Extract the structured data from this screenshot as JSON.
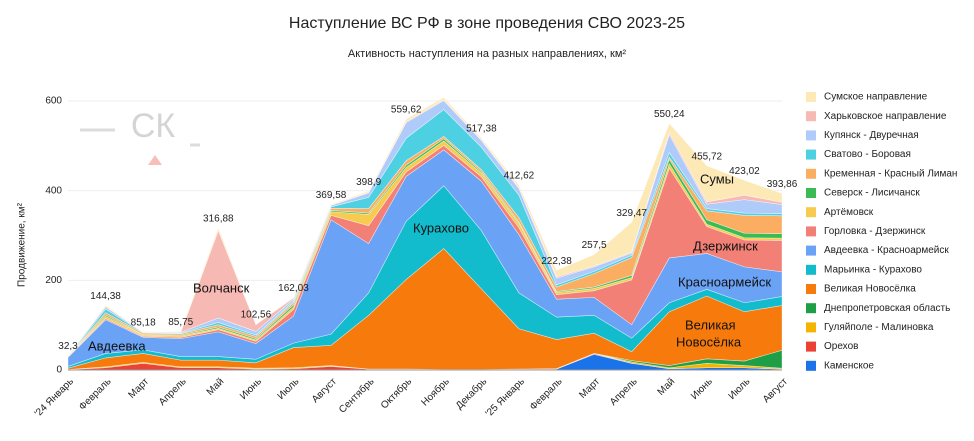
{
  "chart_data": {
    "type": "stacked_area",
    "title": "Наступление ВС РФ в зоне проведения СВО 2023-25",
    "subtitle": "Активность наступления на разных направлениях, км²",
    "y_label": "Продвижение, км²",
    "watermark": "СК",
    "categories": [
      "'24 Январь",
      "Февраль",
      "Март",
      "Апрель",
      "Май",
      "Июнь",
      "Июль",
      "Август",
      "Сентябрь",
      "Октябрь",
      "Ноябрь",
      "Декабрь",
      "'25 Январь",
      "Февраль",
      "Март",
      "Апрель",
      "Май",
      "Июнь",
      "Июль",
      "Август"
    ],
    "ylim": [
      0,
      600
    ],
    "yticks": [
      0,
      200,
      400,
      600
    ],
    "grid": true,
    "series": [
      {
        "name": "Сумское направление",
        "color": "#fde9b6",
        "values": [
          0,
          3.38,
          1.18,
          1.75,
          5.88,
          1.56,
          1.03,
          1.58,
          2.9,
          5.62,
          5,
          3.38,
          5.62,
          14.38,
          25.5,
          66.47,
          20.24,
          80.72,
          33.02,
          19.86
        ]
      },
      {
        "name": "Харьковское направление",
        "color": "#f7b9b3",
        "values": [
          0,
          0,
          0,
          0,
          195,
          15,
          3,
          1,
          1,
          2,
          2,
          2,
          2,
          3,
          2,
          2,
          5,
          5,
          10,
          5
        ]
      },
      {
        "name": "Купянск - Двуречная",
        "color": "#aecbfa",
        "values": [
          1,
          5,
          1,
          2,
          10,
          8,
          5,
          3,
          10,
          35,
          20,
          15,
          15,
          15,
          10,
          5,
          40,
          10,
          30,
          20
        ]
      },
      {
        "name": "Сватово - Боровая",
        "color": "#4dd0e1",
        "values": [
          0,
          8,
          1,
          1,
          5,
          3,
          3,
          3,
          25,
          50,
          60,
          50,
          50,
          5,
          5,
          5,
          10,
          5,
          5,
          5
        ]
      },
      {
        "name": "Кременная - Красный Лиман",
        "color": "#fbae62",
        "values": [
          1,
          5,
          3,
          3,
          5,
          5,
          5,
          5,
          10,
          10,
          5,
          5,
          10,
          10,
          30,
          40,
          5,
          20,
          40,
          40
        ]
      },
      {
        "name": "Северск - Лисичанск",
        "color": "#3cba54",
        "values": [
          0.3,
          3,
          1,
          2,
          3,
          3,
          5,
          3,
          3,
          5,
          5,
          3,
          3,
          2,
          3,
          5,
          10,
          10,
          10,
          10
        ]
      },
      {
        "name": "Артёмовск",
        "color": "#f7cb4d",
        "values": [
          1,
          5,
          3,
          3,
          3,
          3,
          5,
          8,
          25,
          10,
          10,
          8,
          10,
          5,
          5,
          5,
          10,
          5,
          5,
          5
        ]
      },
      {
        "name": "Горловка - Дзержинск",
        "color": "#f28076",
        "values": [
          1,
          3,
          2,
          3,
          5,
          5,
          15,
          10,
          40,
          10,
          10,
          10,
          15,
          10,
          15,
          100,
          200,
          60,
          60,
          70
        ]
      },
      {
        "name": "Авдеевка - Красноармейск",
        "color": "#6aa2f5",
        "values": [
          20,
          75,
          28,
          40,
          55,
          35,
          60,
          255,
          110,
          100,
          80,
          110,
          130,
          40,
          40,
          30,
          100,
          80,
          80,
          55
        ]
      },
      {
        "name": "Марьинка - Курахово",
        "color": "#12bccc",
        "values": [
          4,
          10,
          8,
          8,
          8,
          8,
          10,
          25,
          50,
          130,
          140,
          130,
          80,
          50,
          40,
          30,
          20,
          15,
          20,
          20
        ]
      },
      {
        "name": "Великая Новосёлка",
        "color": "#f77b0c",
        "values": [
          3,
          20,
          20,
          15,
          15,
          12,
          45,
          45,
          120,
          200,
          270,
          180,
          90,
          65,
          45,
          20,
          120,
          140,
          110,
          100
        ]
      },
      {
        "name": "Днепропетровская область",
        "color": "#1e9e45",
        "values": [
          0,
          0,
          0,
          0,
          0,
          0,
          0,
          0,
          0,
          0,
          0,
          0,
          0,
          0,
          0,
          3,
          5,
          10,
          10,
          40
        ]
      },
      {
        "name": "Гуляйполе - Малиновка",
        "color": "#f5b400",
        "values": [
          0,
          2,
          2,
          2,
          2,
          2,
          2,
          2,
          0,
          0,
          0,
          0,
          0,
          0,
          0,
          3,
          2,
          10,
          5,
          2
        ]
      },
      {
        "name": "Орехов",
        "color": "#ea4335",
        "values": [
          1,
          5,
          15,
          5,
          5,
          2,
          3,
          8,
          2,
          2,
          1,
          1,
          2,
          1,
          2,
          0,
          0,
          0,
          0,
          0
        ]
      },
      {
        "name": "Каменское",
        "color": "#1a73e8",
        "values": [
          0,
          0,
          0,
          0,
          0,
          0,
          0,
          0,
          0,
          0,
          0,
          0,
          0,
          2,
          35,
          15,
          3,
          5,
          5,
          2
        ]
      }
    ],
    "total_labels": [
      "32,3",
      "144,38",
      "85,18",
      "85,75",
      "316,88",
      "102,56",
      "162,03",
      "369,58",
      "398,9",
      "559,62",
      null,
      "517,38",
      "412,62",
      "222,38",
      "257,5",
      "329,47",
      "550,24",
      "455,72",
      "423,02",
      "393,86"
    ],
    "annotations": {
      "avdeevka": "Авдеевка",
      "volchansk": "Волчанск",
      "kurakhovo": "Курахово",
      "dzerzhinsk": "Дзержинск",
      "krasnoarmeysk": "Красноармейск",
      "vn": [
        "Великая",
        "Новосёлка"
      ],
      "sumy": "Сумы"
    }
  }
}
